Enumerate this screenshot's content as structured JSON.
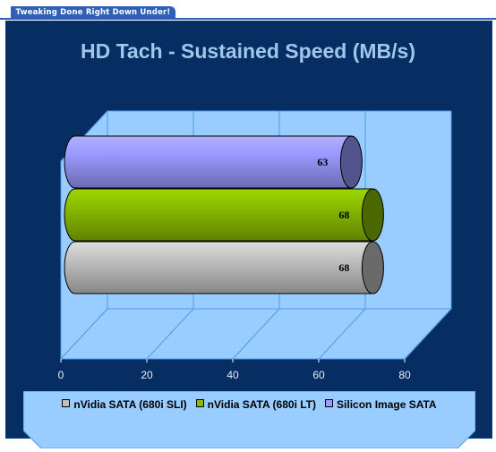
{
  "banner": {
    "text": "Tweaking Done Right Down Under!"
  },
  "colors": {
    "background": "#062e63",
    "plot_wall": "#99ccff",
    "grid": "#4f9bea",
    "title": "#9fc7ec"
  },
  "chart_data": {
    "type": "bar",
    "orientation": "horizontal",
    "style": "3d-cylinder",
    "title": "HD Tach - Sustained Speed (MB/s)",
    "xlabel": "",
    "ylabel": "",
    "xlim": [
      0,
      80
    ],
    "x_ticks": [
      "0",
      "20",
      "40",
      "60",
      "80"
    ],
    "grid": true,
    "legend_position": "bottom",
    "series": [
      {
        "name": "nVidia SATA (680i SLI)",
        "value": 68,
        "label": "68",
        "color": "#c0c0c0"
      },
      {
        "name": "nVidia SATA (680i LT)",
        "value": 68,
        "label": "68",
        "color": "#88bb00"
      },
      {
        "name": "Silicon Image SATA",
        "value": 63,
        "label": "63",
        "color": "#9999ff"
      }
    ]
  }
}
